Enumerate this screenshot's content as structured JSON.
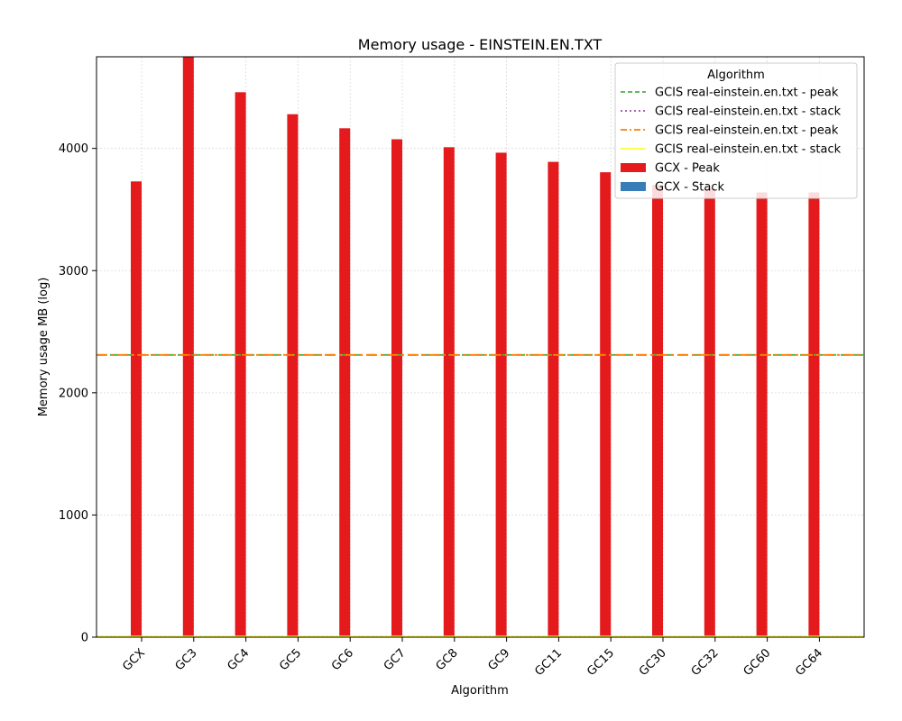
{
  "chart_data": {
    "type": "bar",
    "title": "Memory usage -  EINSTEIN.EN.TXT",
    "xlabel": "Algorithm",
    "ylabel": "Memory usage MB (log)",
    "ylim": [
      0,
      4750
    ],
    "yticks": [
      0,
      1000,
      2000,
      3000,
      4000
    ],
    "grid": true,
    "categories": [
      "GCX",
      "GC3",
      "GC4",
      "GC5",
      "GC6",
      "GC7",
      "GC8",
      "GC9",
      "GC11",
      "GC15",
      "GC30",
      "GC32",
      "GC60",
      "GC64"
    ],
    "series": [
      {
        "name": "GCX - Peak",
        "color": "#e41a1c",
        "values": [
          3730,
          4750,
          4460,
          4280,
          4165,
          4075,
          4010,
          3965,
          3890,
          3805,
          3700,
          3670,
          3640,
          3640
        ]
      },
      {
        "name": "GCX - Stack",
        "color": "#377eb8",
        "values": [
          0,
          0,
          0,
          0,
          0,
          0,
          0,
          0,
          0,
          0,
          0,
          0,
          0,
          0
        ]
      }
    ],
    "reference_lines": [
      {
        "name": "GCIS real-einstein.en.txt - peak",
        "value": 2310,
        "color": "#4daf4a",
        "dash": "dashed"
      },
      {
        "name": "GCIS real-einstein.en.txt - stack",
        "value": 5,
        "color": "#984ea3",
        "dash": "dotted"
      },
      {
        "name": "GCIS real-einstein.en.txt - peak",
        "value": 2310,
        "color": "#ff7f00",
        "dash": "dashdot"
      },
      {
        "name": "GCIS real-einstein.en.txt - stack",
        "value": 5,
        "color": "#ffff33",
        "dash": "solid"
      }
    ],
    "legend": {
      "title": "Algorithm",
      "placement": "top-right"
    }
  }
}
